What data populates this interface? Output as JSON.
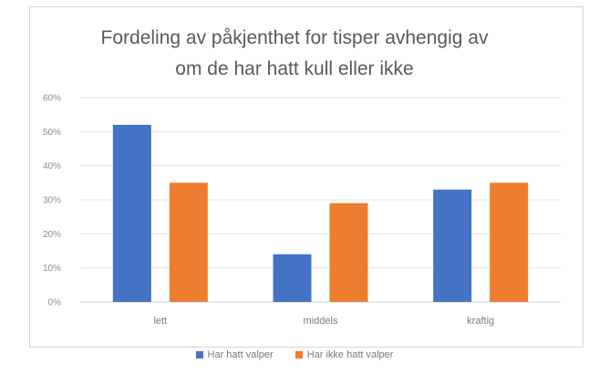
{
  "chart_data": {
    "type": "bar",
    "title": "Fordeling av påkjenthet for tisper avhengig av om de har hatt kull eller ikke",
    "title_lines": [
      "Fordeling av påkjenthet for tisper avhengig av",
      "om de har hatt kull eller ikke"
    ],
    "categories": [
      "lett",
      "middels",
      "kraftig"
    ],
    "series": [
      {
        "name": "Har hatt valper",
        "values": [
          0.52,
          0.14,
          0.33
        ],
        "color": "#4472c4"
      },
      {
        "name": "Har ikke hatt valper",
        "values": [
          0.35,
          0.29,
          0.35
        ],
        "color": "#ed7d31"
      }
    ],
    "ylim": [
      0,
      0.6
    ],
    "yticks": [
      0,
      0.1,
      0.2,
      0.3,
      0.4,
      0.5,
      0.6
    ],
    "ytick_labels": [
      "0%",
      "10%",
      "20%",
      "30%",
      "40%",
      "50%",
      "60%"
    ],
    "grid": true,
    "legend_position": "bottom",
    "xlabel": "",
    "ylabel": ""
  }
}
